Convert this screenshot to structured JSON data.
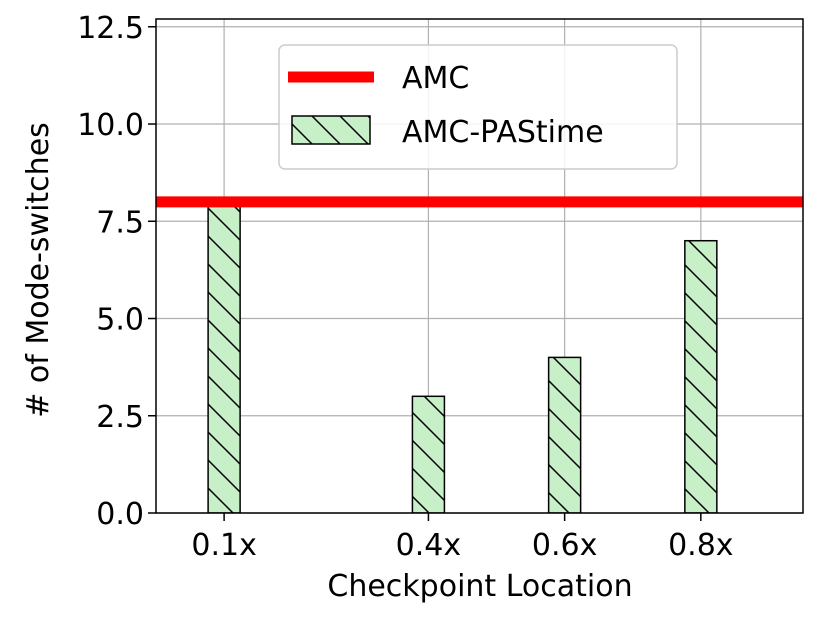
{
  "chart_data": {
    "type": "bar",
    "xlabel": "Checkpoint Location",
    "ylabel": "# of Mode-switches",
    "ylim": [
      0,
      12.7
    ],
    "xlim": [
      0,
      0.95
    ],
    "yticks": [
      0.0,
      2.5,
      5.0,
      7.5,
      10.0,
      12.5
    ],
    "ytick_labels": [
      "0.0",
      "2.5",
      "5.0",
      "7.5",
      "10.0",
      "12.5"
    ],
    "grid": true,
    "legend_position": "upper center",
    "bar_series": {
      "name": "AMC-PAStime",
      "color": "#c8f0c8",
      "edge_color": "#000000",
      "hatch": "\\",
      "categories": [
        "0.1x",
        "0.4x",
        "0.6x",
        "0.8x"
      ],
      "x": [
        0.1,
        0.4,
        0.6,
        0.8
      ],
      "values": [
        8,
        3,
        4,
        7
      ]
    },
    "line_series": {
      "name": "AMC",
      "color": "#ff0000",
      "value": 8
    }
  }
}
